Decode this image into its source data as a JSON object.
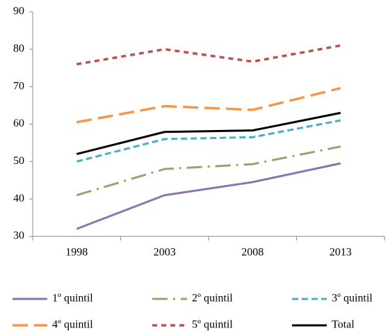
{
  "chart_data": {
    "type": "line",
    "categories": [
      "1998",
      "2003",
      "2008",
      "2013"
    ],
    "series": [
      {
        "name": "1º quintil",
        "color": "#8b72b3",
        "values": [
          32,
          41,
          44.5,
          49.5
        ]
      },
      {
        "name": "2º quintil",
        "color": "#a39d6e",
        "values": [
          41,
          48,
          49.3,
          54
        ]
      },
      {
        "name": "3º quintil",
        "color": "#4bacc6",
        "values": [
          50,
          56,
          56.5,
          61
        ]
      },
      {
        "name": "4º quintil",
        "color": "#f79646",
        "values": [
          60.5,
          64.8,
          63.8,
          69.6
        ]
      },
      {
        "name": "5º quintil",
        "color": "#c0504d",
        "values": [
          76,
          80,
          76.7,
          81
        ]
      },
      {
        "name": "Total",
        "color": "#000000",
        "values": [
          52,
          57.9,
          58.3,
          63
        ]
      }
    ],
    "ylim": [
      30,
      90
    ],
    "yticks": [
      30,
      40,
      50,
      60,
      70,
      80,
      90
    ],
    "grid": false
  }
}
